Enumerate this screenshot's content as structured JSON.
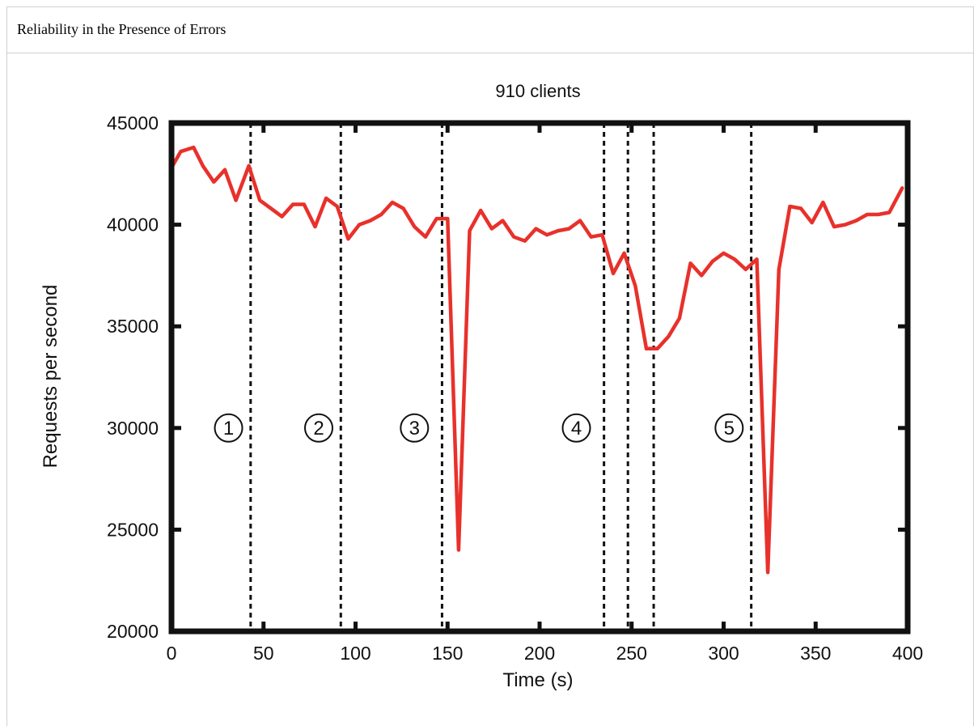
{
  "header": {
    "title": "Reliability in the Presence of Errors"
  },
  "chart_data": {
    "type": "line",
    "title": "910 clients",
    "xlabel": "Time (s)",
    "ylabel": "Requests per second",
    "xlim": [
      0,
      400
    ],
    "ylim": [
      20000,
      45000
    ],
    "x_ticks": [
      0,
      50,
      100,
      150,
      200,
      250,
      300,
      350,
      400
    ],
    "y_ticks": [
      20000,
      25000,
      30000,
      35000,
      40000,
      45000
    ],
    "line_color": "#e8312b",
    "series": [
      {
        "x": [
          0,
          5,
          12,
          17,
          23,
          29,
          35,
          42,
          48,
          54,
          60,
          66,
          72,
          78,
          84,
          90,
          96,
          102,
          108,
          114,
          120,
          126,
          132,
          138,
          144,
          150,
          156,
          162,
          168,
          174,
          180,
          186,
          192,
          198,
          204,
          210,
          216,
          222,
          228,
          234,
          240,
          246,
          252,
          258,
          264,
          270,
          276,
          282,
          288,
          294,
          300,
          306,
          312,
          318,
          324,
          330,
          336,
          342,
          348,
          354,
          360,
          366,
          372,
          378,
          384,
          390,
          397
        ],
        "y": [
          42800,
          43600,
          43800,
          42900,
          42100,
          42700,
          41200,
          42900,
          41200,
          40800,
          40400,
          41000,
          41000,
          39900,
          41300,
          40900,
          39300,
          40000,
          40200,
          40500,
          41100,
          40800,
          39900,
          39400,
          40300,
          40300,
          24000,
          39700,
          40700,
          39800,
          40200,
          39400,
          39200,
          39800,
          39500,
          39700,
          39800,
          40200,
          39400,
          39500,
          37600,
          38600,
          37000,
          33900,
          33900,
          34500,
          35400,
          38100,
          37500,
          38200,
          38600,
          38300,
          37800,
          38300,
          22900,
          37800,
          40900,
          40800,
          40100,
          41100,
          39900,
          40000,
          40200,
          40500,
          40500,
          40600,
          41800
        ]
      }
    ],
    "phase_lines_x": [
      43,
      92,
      147,
      235,
      248,
      262,
      315
    ],
    "phase_labels": [
      {
        "label": "①",
        "x": 31,
        "y": 30000
      },
      {
        "label": "②",
        "x": 80,
        "y": 30000
      },
      {
        "label": "③",
        "x": 132,
        "y": 30000
      },
      {
        "label": "④",
        "x": 220,
        "y": 30000
      },
      {
        "label": "⑤",
        "x": 303,
        "y": 30000
      }
    ]
  }
}
